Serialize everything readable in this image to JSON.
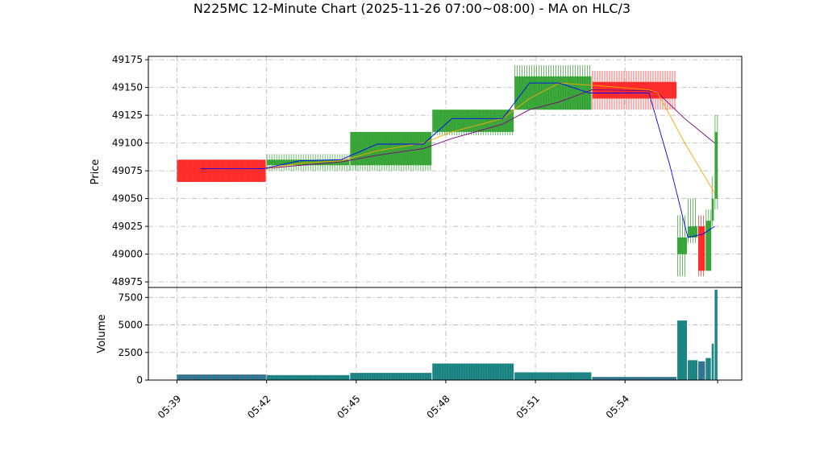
{
  "chart_data": {
    "type": "candlestick",
    "title": "N225MC 12-Minute Chart (2025-11-26 07:00~08:00) - MA on HLC/3",
    "time_labels": [
      "05:39",
      "05:42",
      "05:45",
      "05:48",
      "05:51",
      "05:54"
    ],
    "price_panel": {
      "ylabel": "Price",
      "ylim": [
        48970,
        49178
      ],
      "yticks": [
        48975,
        49000,
        49025,
        49050,
        49075,
        49100,
        49125,
        49150,
        49175
      ],
      "grid": true
    },
    "volume_panel": {
      "ylabel": "Volume",
      "ylim": [
        0,
        8400
      ],
      "yticks": [
        0,
        2500,
        5000,
        7500
      ],
      "yticklabels": [
        "0",
        "2500",
        "5000",
        "7500"
      ]
    },
    "colors": {
      "up": "#2ca02c",
      "down": "#ff2020",
      "volume": "#1a7f8e",
      "ma_fast": "#0000ff",
      "ma_mid": "#ffa500",
      "ma_slow": "#800080",
      "grid": "#b0b0b0"
    },
    "candles": [
      {
        "t": 0.0,
        "open": 49085,
        "high": 49085,
        "low": 49065,
        "close": 49065,
        "volume": 500
      },
      {
        "t": 3.0,
        "open": 49080,
        "high": 49090,
        "low": 49075,
        "close": 49085,
        "volume": 450
      },
      {
        "t": 5.8,
        "open": 49080,
        "high": 49110,
        "low": 49075,
        "close": 49110,
        "volume": 650
      },
      {
        "t": 8.55,
        "open": 49110,
        "high": 49130,
        "low": 49107,
        "close": 49130,
        "volume": 1500
      },
      {
        "t": 11.3,
        "open": 49130,
        "high": 49170,
        "low": 49130,
        "close": 49160,
        "volume": 700
      },
      {
        "t": 13.9,
        "open": 49155,
        "high": 49165,
        "low": 49130,
        "close": 49140,
        "volume": 280
      },
      {
        "t": 16.75,
        "open": 49000,
        "high": 49035,
        "low": 48980,
        "close": 49015,
        "volume": 5400
      },
      {
        "t": 17.1,
        "open": 49015,
        "high": 49050,
        "low": 49010,
        "close": 49025,
        "volume": 1800
      },
      {
        "t": 17.45,
        "open": 49025,
        "high": 49035,
        "low": 48980,
        "close": 48985,
        "volume": 1700
      },
      {
        "t": 17.7,
        "open": 48985,
        "high": 49040,
        "low": 48985,
        "close": 49030,
        "volume": 2000
      },
      {
        "t": 17.9,
        "open": 49030,
        "high": 49070,
        "low": 49025,
        "close": 49050,
        "volume": 3300
      },
      {
        "t": 18.0,
        "open": 49050,
        "high": 49125,
        "low": 49040,
        "close": 49110,
        "volume": 8200
      }
    ],
    "ma_fast": [
      [
        0.8,
        49077
      ],
      [
        2.9,
        49077
      ],
      [
        4.1,
        49084
      ],
      [
        5.5,
        49085
      ],
      [
        6.7,
        49099
      ],
      [
        8.25,
        49099
      ],
      [
        9.2,
        49122
      ],
      [
        10.9,
        49122
      ],
      [
        11.8,
        49154
      ],
      [
        12.8,
        49154
      ],
      [
        13.8,
        49145
      ],
      [
        15.8,
        49145
      ],
      [
        16.5,
        49080
      ],
      [
        17.1,
        49015
      ],
      [
        17.6,
        49018
      ],
      [
        18.0,
        49025
      ]
    ],
    "ma_mid": [
      [
        2.9,
        49077
      ],
      [
        4.2,
        49082
      ],
      [
        5.5,
        49084
      ],
      [
        6.7,
        49093
      ],
      [
        8.25,
        49100
      ],
      [
        9.2,
        49110
      ],
      [
        10.9,
        49122
      ],
      [
        11.8,
        49140
      ],
      [
        12.8,
        49154
      ],
      [
        13.9,
        49152
      ],
      [
        15.8,
        49148
      ],
      [
        16.1,
        49145
      ],
      [
        17.0,
        49100
      ],
      [
        18.0,
        49055
      ]
    ],
    "ma_slow": [
      [
        2.9,
        49077
      ],
      [
        4.2,
        49080
      ],
      [
        5.5,
        49083
      ],
      [
        6.7,
        49089
      ],
      [
        8.25,
        49095
      ],
      [
        9.2,
        49104
      ],
      [
        10.9,
        49117
      ],
      [
        11.8,
        49130
      ],
      [
        12.8,
        49137
      ],
      [
        13.9,
        49148
      ],
      [
        15.8,
        49147
      ],
      [
        16.1,
        49145
      ],
      [
        17.0,
        49122
      ],
      [
        18.0,
        49100
      ]
    ]
  }
}
